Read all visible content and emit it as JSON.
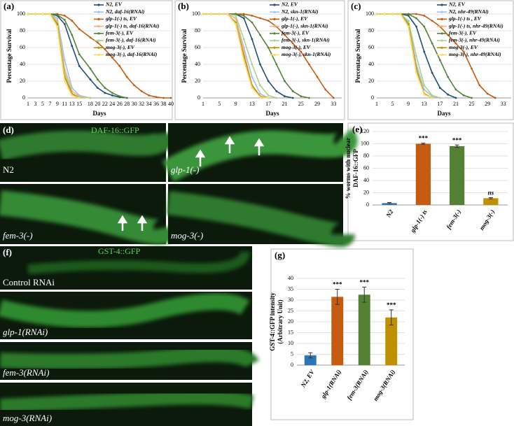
{
  "chart_data": [
    {
      "type": "line",
      "label": "(a)",
      "xlabel": "Days",
      "ylabel": "Percentage Survival",
      "x": [
        1,
        3,
        5,
        7,
        9,
        11,
        13,
        15,
        18,
        20,
        22,
        24,
        26,
        28,
        30,
        32,
        34,
        36,
        38,
        40
      ],
      "xlim": [
        1,
        40
      ],
      "xticks": [
        1,
        3,
        5,
        7,
        9,
        11,
        13,
        15,
        18,
        20,
        22,
        24,
        26,
        28,
        30,
        32,
        34,
        36,
        38,
        40
      ],
      "ylim": [
        0,
        100
      ],
      "yticks": [
        0,
        20,
        40,
        60,
        80,
        100
      ],
      "grid": true,
      "legend": "upper right",
      "series": [
        {
          "name": "N2, EV",
          "color": "#1f4e79",
          "values": [
            100,
            100,
            100,
            100,
            98,
            88,
            62,
            38,
            22,
            12,
            6,
            3,
            1,
            0,
            null,
            null,
            null,
            null,
            null,
            null
          ]
        },
        {
          "name": "N2, daf-16(RNAi)",
          "color": "#9dc3e6",
          "values": [
            100,
            100,
            100,
            100,
            95,
            45,
            12,
            3,
            0,
            null,
            null,
            null,
            null,
            null,
            null,
            null,
            null,
            null,
            null,
            null
          ]
        },
        {
          "name": "glp-1(-) ts, EV",
          "color": "#c55a11",
          "values": [
            100,
            100,
            100,
            100,
            100,
            98,
            92,
            82,
            72,
            66,
            58,
            48,
            38,
            25,
            15,
            8,
            3,
            1,
            0,
            0
          ]
        },
        {
          "name": "glp-1(-) ts, daf-16(RNAi)",
          "color": "#f4b183",
          "values": [
            100,
            100,
            100,
            100,
            92,
            35,
            8,
            2,
            0,
            null,
            null,
            null,
            null,
            null,
            null,
            null,
            null,
            null,
            null,
            null
          ]
        },
        {
          "name": "fem-3(-), EV",
          "color": "#548235",
          "values": [
            100,
            100,
            100,
            100,
            99,
            93,
            75,
            52,
            35,
            22,
            12,
            6,
            2,
            0,
            null,
            null,
            null,
            null,
            null,
            null
          ]
        },
        {
          "name": "fem-3(-), daf-16(RNAi)",
          "color": "#a9d18e",
          "values": [
            100,
            100,
            100,
            100,
            90,
            30,
            5,
            1,
            0,
            null,
            null,
            null,
            null,
            null,
            null,
            null,
            null,
            null,
            null,
            null
          ]
        },
        {
          "name": "mog-3(-), EV",
          "color": "#bf9000",
          "values": [
            100,
            100,
            100,
            100,
            88,
            25,
            5,
            0,
            null,
            null,
            null,
            null,
            null,
            null,
            null,
            null,
            null,
            null,
            null,
            null
          ]
        },
        {
          "name": "mog-3(-), daf-16(RNAi)",
          "color": "#ffd966",
          "values": [
            100,
            100,
            100,
            100,
            85,
            20,
            3,
            0,
            null,
            null,
            null,
            null,
            null,
            null,
            null,
            null,
            null,
            null,
            null,
            null
          ]
        }
      ]
    },
    {
      "type": "line",
      "label": "(b)",
      "xlabel": "Days",
      "ylabel": "Percentage Survival",
      "x": [
        1,
        3,
        5,
        7,
        9,
        11,
        13,
        15,
        17,
        19,
        21,
        23,
        25,
        27,
        29,
        31,
        33
      ],
      "xlim": [
        1,
        35
      ],
      "xticks": [
        1,
        5,
        9,
        13,
        17,
        21,
        25,
        29,
        33
      ],
      "ylim": [
        0,
        100
      ],
      "yticks": [
        0,
        20,
        40,
        60,
        80,
        100
      ],
      "grid": true,
      "legend": "upper right",
      "series": [
        {
          "name": "N2, EV",
          "color": "#1f4e79",
          "values": [
            100,
            100,
            100,
            100,
            100,
            95,
            70,
            40,
            20,
            8,
            2,
            0,
            null,
            null,
            null,
            null,
            null
          ]
        },
        {
          "name": "N2, skn-1(RNAi)",
          "color": "#9dc3e6",
          "values": [
            100,
            100,
            100,
            100,
            95,
            60,
            25,
            5,
            0,
            null,
            null,
            null,
            null,
            null,
            null,
            null,
            null
          ]
        },
        {
          "name": "glp-1(-), EV",
          "color": "#c55a11",
          "values": [
            100,
            100,
            100,
            100,
            100,
            100,
            98,
            95,
            92,
            85,
            75,
            65,
            55,
            40,
            25,
            10,
            0
          ]
        },
        {
          "name": "glp-1(-), skn-1(RNAi)",
          "color": "#f4b183",
          "values": [
            100,
            100,
            100,
            100,
            95,
            55,
            15,
            2,
            0,
            null,
            null,
            null,
            null,
            null,
            null,
            null,
            null
          ]
        },
        {
          "name": "fem-3(-), EV",
          "color": "#548235",
          "values": [
            100,
            100,
            100,
            100,
            100,
            98,
            90,
            75,
            60,
            40,
            20,
            8,
            2,
            0,
            null,
            null,
            null
          ]
        },
        {
          "name": "fem-3(-), skn-1(RNAi)",
          "color": "#a9d18e",
          "values": [
            100,
            100,
            100,
            100,
            98,
            70,
            40,
            15,
            3,
            0,
            null,
            null,
            null,
            null,
            null,
            null,
            null
          ]
        },
        {
          "name": "mog-3(-), EV",
          "color": "#bf9000",
          "values": [
            100,
            100,
            100,
            100,
            90,
            50,
            15,
            2,
            0,
            null,
            null,
            null,
            null,
            null,
            null,
            null,
            null
          ]
        },
        {
          "name": "mog-3(-), skn-1(RNAi)",
          "color": "#ffd966",
          "values": [
            100,
            100,
            100,
            100,
            88,
            45,
            12,
            1,
            0,
            null,
            null,
            null,
            null,
            null,
            null,
            null,
            null
          ]
        }
      ]
    },
    {
      "type": "line",
      "label": "(c)",
      "xlabel": "Days",
      "ylabel": "Percentage Survival",
      "x": [
        1,
        3,
        5,
        7,
        9,
        11,
        13,
        15,
        17,
        19,
        21,
        23,
        25,
        27,
        29,
        31,
        33
      ],
      "xlim": [
        1,
        35
      ],
      "xticks": [
        1,
        5,
        9,
        13,
        17,
        21,
        25,
        29,
        33
      ],
      "ylim": [
        0,
        100
      ],
      "yticks": [
        0,
        20,
        40,
        60,
        80,
        100
      ],
      "grid": true,
      "legend": "upper right",
      "series": [
        {
          "name": "N2, EV",
          "color": "#1f4e79",
          "values": [
            100,
            100,
            100,
            100,
            98,
            85,
            55,
            30,
            12,
            4,
            0,
            null,
            null,
            null,
            null,
            null,
            null
          ]
        },
        {
          "name": "N2, nhr-49(RNAi)",
          "color": "#9dc3e6",
          "values": [
            100,
            100,
            100,
            100,
            90,
            40,
            10,
            2,
            0,
            null,
            null,
            null,
            null,
            null,
            null,
            null,
            null
          ]
        },
        {
          "name": "glp-1(-) ts , EV",
          "color": "#c55a11",
          "values": [
            100,
            100,
            100,
            100,
            100,
            100,
            98,
            92,
            85,
            75,
            65,
            55,
            35,
            15,
            5,
            0,
            null
          ]
        },
        {
          "name": "glp-1(-) ts, nhr-49(RNAi)",
          "color": "#f4b183",
          "values": [
            100,
            100,
            100,
            100,
            85,
            30,
            5,
            0,
            null,
            null,
            null,
            null,
            null,
            null,
            null,
            null,
            null
          ]
        },
        {
          "name": "fem-3(-), EV",
          "color": "#548235",
          "values": [
            100,
            100,
            100,
            100,
            100,
            95,
            85,
            65,
            45,
            25,
            10,
            3,
            0,
            null,
            null,
            null,
            null
          ]
        },
        {
          "name": "fem-3(-), nhr-49(RNAi)",
          "color": "#a9d18e",
          "values": [
            100,
            100,
            100,
            100,
            92,
            50,
            15,
            3,
            0,
            null,
            null,
            null,
            null,
            null,
            null,
            null,
            null
          ]
        },
        {
          "name": "mog-3(-), EV",
          "color": "#bf9000",
          "values": [
            100,
            100,
            100,
            100,
            88,
            35,
            5,
            0,
            null,
            null,
            null,
            null,
            null,
            null,
            null,
            null,
            null
          ]
        },
        {
          "name": "mog-3(-), nhr-49(RNAi)",
          "color": "#ffd966",
          "values": [
            100,
            100,
            100,
            100,
            85,
            30,
            4,
            0,
            null,
            null,
            null,
            null,
            null,
            null,
            null,
            null,
            null
          ]
        }
      ]
    },
    {
      "type": "bar",
      "label": "(e)",
      "ylabel": [
        "% worms with nuclear",
        "DAF-16::GFP"
      ],
      "categories": [
        "N2",
        "glp-1(-) ts",
        "fem-3(-)",
        "mog-3(-)"
      ],
      "values": [
        3,
        100,
        96,
        11
      ],
      "errors": [
        1,
        1,
        2,
        1
      ],
      "annotations": [
        "***",
        "***",
        "ns"
      ],
      "annotated": [
        1,
        2,
        3
      ],
      "colors": [
        "#2e75b6",
        "#c55a11",
        "#548235",
        "#bf9000"
      ],
      "ylim": [
        0,
        120
      ],
      "yticks": [
        0,
        20,
        40,
        60,
        80,
        100,
        120
      ],
      "grid": true
    },
    {
      "type": "bar",
      "label": "(g)",
      "ylabel": [
        "GST-4::GFP intensity",
        "(Arbitrary Unit)"
      ],
      "categories": [
        "N2, EV",
        "glp-1(RNAi)",
        "fem-3(RNAi)",
        "mog-3(RNAi)"
      ],
      "values": [
        4.5,
        31.5,
        32.5,
        22
      ],
      "errors": [
        1.2,
        3.5,
        3.5,
        3.5
      ],
      "annotations": [
        "***",
        "***",
        "***"
      ],
      "annotated": [
        1,
        2,
        3
      ],
      "colors": [
        "#2e75b6",
        "#c55a11",
        "#548235",
        "#bf9000"
      ],
      "ylim": [
        0,
        40
      ],
      "yticks": [
        0,
        5,
        10,
        15,
        20,
        25,
        30,
        35,
        40
      ],
      "grid": true
    }
  ],
  "images": {
    "d": {
      "label": "(d)",
      "title": "DAF-16::GFP",
      "panels": [
        "N2",
        "glp-1(-)",
        "fem-3(-)",
        "mog-3(-)"
      ]
    },
    "f": {
      "label": "(f)",
      "title": "GST-4::GFP",
      "panels": [
        "Control RNAi",
        "glp-1(RNAi)",
        "fem-3(RNAi)",
        "mog-3(RNAi)"
      ]
    }
  }
}
